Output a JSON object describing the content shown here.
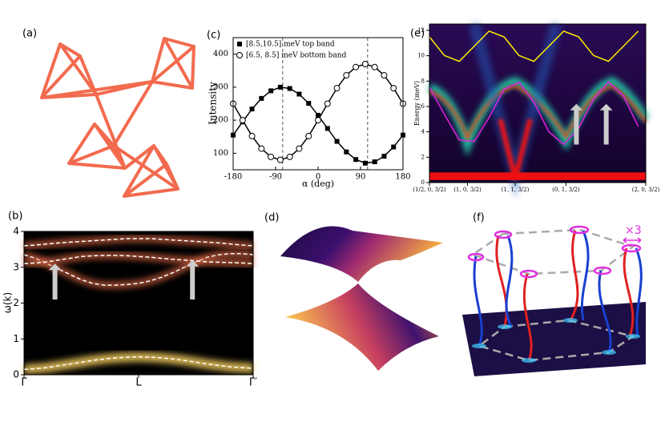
{
  "figure": {
    "panel_a": {
      "label": "(a)"
    },
    "panel_d": {
      "label": "(d)"
    },
    "panel_f": {
      "label": "(f)",
      "annotation": "×3"
    }
  },
  "chart_data": [
    {
      "type": "line",
      "label": "(b)",
      "ylabel": "ω(k)",
      "x": [
        0,
        0.1,
        0.2,
        0.3,
        0.4,
        0.5,
        0.6,
        0.7,
        0.8,
        0.9,
        1,
        1.1,
        1.2,
        1.3,
        1.4,
        1.5,
        1.6,
        1.7,
        1.8,
        1.9,
        2
      ],
      "xlim": [
        0,
        2
      ],
      "xticks": [
        {
          "value": 0,
          "label": "Γ"
        },
        {
          "value": 1,
          "label": "L"
        },
        {
          "value": 2,
          "label": "Γ′"
        }
      ],
      "ylim": [
        0,
        4
      ],
      "yticks": [
        0,
        1,
        2,
        3,
        4
      ],
      "series": [
        {
          "color": "#ffffff",
          "values": [
            3.6,
            3.62,
            3.65,
            3.68,
            3.7,
            3.72,
            3.74,
            3.76,
            3.78,
            3.8,
            3.8,
            3.8,
            3.78,
            3.76,
            3.74,
            3.72,
            3.7,
            3.68,
            3.65,
            3.62,
            3.6
          ]
        },
        {
          "color": "#ffffff",
          "values": [
            3.35,
            3.25,
            3.1,
            2.95,
            2.8,
            2.65,
            2.55,
            2.5,
            2.5,
            2.52,
            2.55,
            2.62,
            2.72,
            2.85,
            3.0,
            3.15,
            3.28,
            3.35,
            3.38,
            3.38,
            3.35
          ]
        },
        {
          "color": "#ffffff",
          "values": [
            3.1,
            3.12,
            3.15,
            3.2,
            3.25,
            3.3,
            3.32,
            3.33,
            3.33,
            3.32,
            3.3,
            3.28,
            3.25,
            3.22,
            3.2,
            3.18,
            3.15,
            3.14,
            3.13,
            3.12,
            3.1
          ]
        },
        {
          "color": "#ffffff",
          "values": [
            0.15,
            0.17,
            0.2,
            0.25,
            0.3,
            0.35,
            0.4,
            0.44,
            0.47,
            0.49,
            0.5,
            0.49,
            0.47,
            0.44,
            0.4,
            0.35,
            0.3,
            0.26,
            0.22,
            0.2,
            0.18
          ]
        }
      ]
    },
    {
      "type": "scatter",
      "label": "(c)",
      "xlabel": "α (deg)",
      "ylabel": "Intensity",
      "legend": "upper left",
      "x": [
        -180,
        -160,
        -140,
        -120,
        -100,
        -80,
        -60,
        -40,
        -20,
        0,
        20,
        40,
        60,
        80,
        100,
        120,
        140,
        160,
        180
      ],
      "xlim": [
        -180,
        180
      ],
      "xticks": [
        -180,
        -90,
        0,
        90,
        180
      ],
      "ylim": [
        50,
        450
      ],
      "yticks": [
        100,
        200,
        300,
        400
      ],
      "vlines": [
        -75,
        105
      ],
      "series": [
        {
          "name": "[8.5,10.5] meV top band",
          "color": "#000000",
          "marker": "square",
          "values": [
            155,
            195,
            234,
            266,
            289,
            300,
            296,
            279,
            251,
            215,
            175,
            136,
            104,
            81,
            70,
            74,
            91,
            119,
            155
          ]
        },
        {
          "name": "[6.5, 8.5] meV bottom band",
          "color": "#000000",
          "marker": "circle",
          "values": [
            250,
            200,
            152,
            114,
            89,
            80,
            89,
            114,
            152,
            200,
            250,
            297,
            336,
            361,
            370,
            361,
            336,
            297,
            250
          ]
        }
      ]
    },
    {
      "type": "line",
      "label": "(e)",
      "ylabel": "Energy (meV)",
      "x": [
        0,
        20,
        40,
        60,
        80,
        100,
        120,
        140,
        160,
        180,
        200,
        220,
        240,
        260,
        280
      ],
      "xlim": [
        0,
        290
      ],
      "xticks": [
        {
          "value": 0,
          "label": "(1/2, 0, 3/2)"
        },
        {
          "value": 51,
          "label": "(1, 0, 3/2)"
        },
        {
          "value": 115,
          "label": "(1, 1, 3/2)"
        },
        {
          "value": 183,
          "label": "(0, 1, 3/2)"
        },
        {
          "value": 290,
          "label": "(2, 0, 3/2)"
        }
      ],
      "ylim": [
        0,
        12.5
      ],
      "yticks": [
        0,
        2,
        4,
        6,
        8,
        10,
        12
      ],
      "series": [
        {
          "color": "#ffee00",
          "values": [
            11.49,
            10.02,
            9.56,
            10.75,
            11.94,
            11.49,
            10.02,
            9.56,
            10.75,
            11.94,
            11.49,
            10.02,
            9.56,
            10.75,
            11.94
          ]
        },
        {
          "color": "#e020e0",
          "values": [
            7.51,
            5.38,
            3.35,
            3.24,
            5.13,
            7.35,
            7.92,
            6.34,
            4.01,
            3.0,
            4.28,
            6.57,
            7.95,
            6.83,
            4.41
          ]
        }
      ]
    }
  ]
}
